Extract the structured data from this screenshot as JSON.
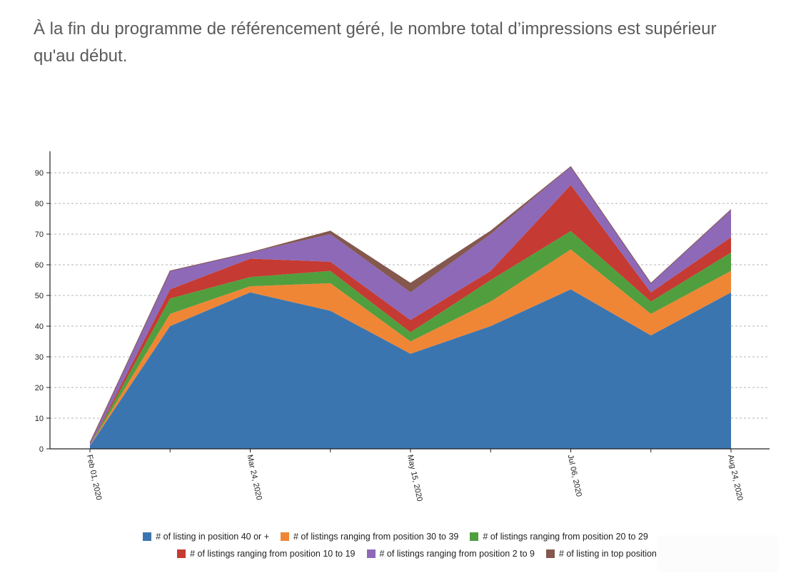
{
  "caption": "À la fin du programme de référencement géré, le nombre total d’impressions est supérieur qu'au début.",
  "chart_data": {
    "type": "area",
    "stacked": true,
    "x": [
      "Feb 01, 2020",
      "",
      "Mar 24, 2020",
      "",
      "May 15, 2020",
      "",
      "Jul 06, 2020",
      "",
      "Aug 24, 2020"
    ],
    "x_tick_labels": [
      "Feb 01, 2020",
      "Mar 24, 2020",
      "May 15, 2020",
      "Jul 06, 2020",
      "Aug 24, 2020"
    ],
    "ylim": [
      0,
      97
    ],
    "yticks": [
      0,
      10,
      20,
      30,
      40,
      50,
      60,
      70,
      80,
      90
    ],
    "grid": true,
    "legend_position": "bottom",
    "series": [
      {
        "name": "# of listing in position 40 or +",
        "color": "#3b75af",
        "values": [
          1,
          40,
          51,
          45,
          31,
          40,
          52,
          37,
          51
        ]
      },
      {
        "name": "# of listings ranging from position 30 to 39",
        "color": "#ef8636",
        "values": [
          0,
          4,
          2,
          9,
          4,
          8,
          13,
          7,
          7
        ]
      },
      {
        "name": "# of listings ranging from position 20 to 29",
        "color": "#519e3e",
        "values": [
          0,
          5,
          3,
          4,
          3,
          7,
          6,
          4,
          6
        ]
      },
      {
        "name": "# of listings ranging from position 10 to 19",
        "color": "#c53a32",
        "values": [
          0,
          3,
          6,
          3,
          4,
          3,
          15,
          3,
          5
        ]
      },
      {
        "name": "# of listings ranging from position 2 to 9",
        "color": "#8d69b8",
        "values": [
          1,
          6,
          2,
          9,
          9,
          12,
          6,
          3,
          9
        ]
      },
      {
        "name": "# of listing in top position",
        "color": "#84584e",
        "values": [
          0,
          0,
          0,
          1,
          3,
          1,
          0,
          0,
          0
        ]
      }
    ]
  }
}
